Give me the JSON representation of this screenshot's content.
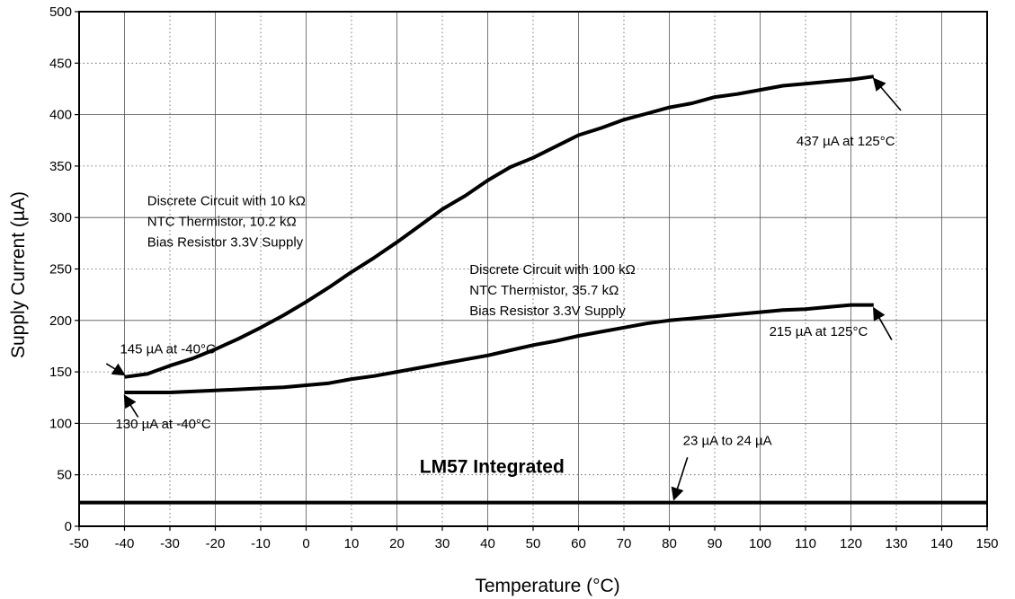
{
  "chart_data": {
    "type": "line",
    "title": "",
    "xlabel": "Temperature (°C)",
    "ylabel": "Supply Current (µA)",
    "xlim": [
      -50,
      150
    ],
    "ylim": [
      0,
      500
    ],
    "x_ticks": [
      -50,
      -40,
      -30,
      -20,
      -10,
      0,
      10,
      20,
      30,
      40,
      50,
      60,
      70,
      80,
      90,
      100,
      110,
      120,
      130,
      140,
      150
    ],
    "y_ticks": [
      0,
      50,
      100,
      150,
      200,
      250,
      300,
      350,
      400,
      450,
      500
    ],
    "grid": true,
    "series": [
      {
        "name": "",
        "x": [
          -40,
          -35,
          -30,
          -25,
          -20,
          -15,
          -10,
          -5,
          0,
          5,
          10,
          15,
          20,
          25,
          30,
          35,
          40,
          45,
          50,
          55,
          60,
          65,
          70,
          75,
          80,
          85,
          90,
          95,
          100,
          105,
          110,
          115,
          120,
          125
        ],
        "y": [
          145,
          148,
          156,
          163,
          172,
          182,
          193,
          205,
          218,
          232,
          247,
          261,
          276,
          292,
          308,
          321,
          336,
          349,
          358,
          369,
          380,
          387,
          395,
          401,
          407,
          411,
          417,
          420,
          424,
          428,
          430,
          432,
          434,
          437
        ]
      },
      {
        "name": "",
        "x": [
          -40,
          -35,
          -30,
          -25,
          -20,
          -15,
          -10,
          -5,
          0,
          5,
          10,
          15,
          20,
          25,
          30,
          35,
          40,
          45,
          50,
          55,
          60,
          65,
          70,
          75,
          80,
          85,
          90,
          95,
          100,
          105,
          110,
          115,
          120,
          125
        ],
        "y": [
          130,
          130,
          130,
          131,
          132,
          133,
          134,
          135,
          137,
          139,
          143,
          146,
          150,
          154,
          158,
          162,
          166,
          171,
          176,
          180,
          185,
          189,
          193,
          197,
          200,
          202,
          204,
          206,
          208,
          210,
          211,
          213,
          215,
          215
        ]
      },
      {
        "name": "",
        "x": [
          -50,
          150
        ],
        "y": [
          23,
          23
        ]
      }
    ],
    "annotations": [
      {
        "text": "145 µA at -40°C",
        "x": -41,
        "y": 168
      },
      {
        "text": "130 µA at -40°C",
        "x": -42,
        "y": 95
      },
      {
        "text": "437 µA at 125°C",
        "x": 108,
        "y": 370
      },
      {
        "text": "215 µA at 125°C",
        "x": 102,
        "y": 185
      },
      {
        "text": "23 µA to 24 µA",
        "x": 83,
        "y": 79
      },
      {
        "text": "Discrete Circuit with 10 kΩ",
        "x": -35,
        "y": 312
      },
      {
        "text": "NTC Thermistor, 10.2 kΩ",
        "x": -35,
        "y": 292
      },
      {
        "text": "Bias Resistor 3.3V Supply",
        "x": -35,
        "y": 272
      },
      {
        "text": "Discrete Circuit with 100 kΩ",
        "x": 36,
        "y": 245
      },
      {
        "text": "NTC Thermistor, 35.7 kΩ",
        "x": 36,
        "y": 225
      },
      {
        "text": "Bias Resistor 3.3V Supply",
        "x": 36,
        "y": 205
      },
      {
        "text": "LM57 Integrated",
        "x": 25,
        "y": 52,
        "bold": true
      }
    ],
    "arrows": [
      {
        "from": [
          -44,
          158
        ],
        "to": [
          -40,
          147
        ]
      },
      {
        "from": [
          -37,
          106
        ],
        "to": [
          -40,
          127
        ]
      },
      {
        "from": [
          131,
          404
        ],
        "to": [
          125,
          435
        ]
      },
      {
        "from": [
          129,
          181
        ],
        "to": [
          125,
          212
        ]
      },
      {
        "from": [
          84,
          67
        ],
        "to": [
          81,
          26
        ]
      }
    ]
  }
}
